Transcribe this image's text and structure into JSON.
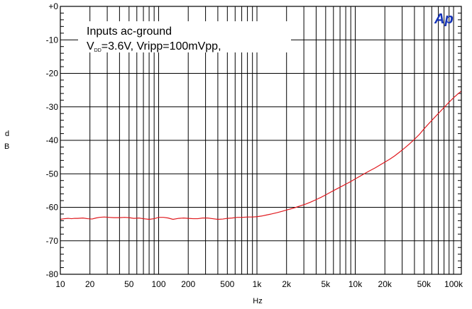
{
  "chart_data": {
    "type": "line",
    "title": "",
    "xlabel": "Hz",
    "ylabel": "d\nB",
    "xscale": "log",
    "xlim": [
      10,
      120000
    ],
    "ylim": [
      -80,
      0
    ],
    "grid": true,
    "x_tick_labels": [
      {
        "value": 10,
        "label": "10"
      },
      {
        "value": 20,
        "label": "20"
      },
      {
        "value": 50,
        "label": "50"
      },
      {
        "value": 100,
        "label": "100"
      },
      {
        "value": 200,
        "label": "200"
      },
      {
        "value": 500,
        "label": "500"
      },
      {
        "value": 1000,
        "label": "1k"
      },
      {
        "value": 2000,
        "label": "2k"
      },
      {
        "value": 5000,
        "label": "5k"
      },
      {
        "value": 10000,
        "label": "10k"
      },
      {
        "value": 20000,
        "label": "20k"
      },
      {
        "value": 50000,
        "label": "50k"
      },
      {
        "value": 100000,
        "label": "100k"
      }
    ],
    "y_tick_labels": [
      {
        "value": 0,
        "label": "+0"
      },
      {
        "value": -10,
        "label": "-10"
      },
      {
        "value": -20,
        "label": "-20"
      },
      {
        "value": -30,
        "label": "-30"
      },
      {
        "value": -40,
        "label": "-40"
      },
      {
        "value": -50,
        "label": "-50"
      },
      {
        "value": -60,
        "label": "-60"
      },
      {
        "value": -70,
        "label": "-70"
      },
      {
        "value": -80,
        "label": "-80"
      }
    ],
    "annotations": {
      "line1": "Inputs ac-ground",
      "line2_prefix": "V",
      "line2_sub": "DD",
      "line2_rest": "=3.6V, Vripp=100mVpp,"
    },
    "logo": "Ap",
    "series": [
      {
        "color": "#e0191e",
        "x": [
          10,
          11,
          12,
          13,
          14,
          15,
          17,
          19,
          21,
          23,
          25,
          28,
          31,
          35,
          40,
          45,
          50,
          56,
          63,
          70,
          80,
          90,
          100,
          112,
          125,
          140,
          160,
          180,
          200,
          225,
          250,
          280,
          315,
          355,
          400,
          450,
          500,
          560,
          630,
          710,
          800,
          900,
          1000,
          1120,
          1250,
          1400,
          1600,
          1800,
          2000,
          2250,
          2500,
          2800,
          3150,
          3550,
          4000,
          4500,
          5000,
          5600,
          6300,
          7100,
          8000,
          9000,
          10000,
          11200,
          12500,
          14000,
          16000,
          18000,
          20000,
          22500,
          25000,
          28000,
          31500,
          35500,
          40000,
          45000,
          50000,
          56000,
          63000,
          71000,
          80000,
          90000,
          100000,
          110000,
          120000
        ],
        "y": [
          -63.6,
          -63.4,
          -63.3,
          -63.4,
          -63.3,
          -63.3,
          -63.2,
          -63.4,
          -63.5,
          -63.2,
          -63.0,
          -62.9,
          -63.0,
          -63.1,
          -63.1,
          -63.0,
          -63.1,
          -63.3,
          -63.2,
          -63.4,
          -63.6,
          -63.4,
          -63.0,
          -63.0,
          -63.2,
          -63.6,
          -63.3,
          -63.2,
          -63.3,
          -63.4,
          -63.4,
          -63.2,
          -63.2,
          -63.4,
          -63.6,
          -63.5,
          -63.3,
          -63.2,
          -63.0,
          -63.0,
          -62.9,
          -62.9,
          -62.8,
          -62.6,
          -62.3,
          -62.0,
          -61.6,
          -61.2,
          -60.8,
          -60.4,
          -60.0,
          -59.5,
          -59.0,
          -58.4,
          -57.7,
          -57.0,
          -56.3,
          -55.5,
          -54.7,
          -53.9,
          -53.1,
          -52.3,
          -51.5,
          -50.7,
          -49.9,
          -49.1,
          -48.2,
          -47.3,
          -46.5,
          -45.6,
          -44.7,
          -43.6,
          -42.4,
          -41.1,
          -39.7,
          -38.2,
          -36.6,
          -35.0,
          -33.4,
          -31.8,
          -30.2,
          -28.6,
          -27.3,
          -26.2,
          -25.3
        ]
      }
    ]
  }
}
